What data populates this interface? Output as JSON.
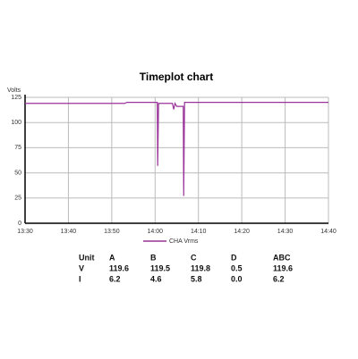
{
  "chart_data": {
    "type": "line",
    "title": "Timeplot chart",
    "y_label": "Volts",
    "x": [
      810,
      833,
      833.5,
      840.5,
      840.6,
      840.8,
      844,
      844.3,
      844.6,
      845,
      846.5,
      846.6,
      846.8,
      880
    ],
    "series": [
      {
        "name": "CHA Vrms",
        "color": "#993399",
        "values": [
          119,
          119,
          120,
          120,
          57,
          119,
          119,
          113,
          119,
          116,
          116,
          27,
          120,
          120
        ]
      }
    ],
    "xlim": [
      810,
      880
    ],
    "xticks": [
      {
        "value": 810,
        "label": "13:30"
      },
      {
        "value": 820,
        "label": "13:40"
      },
      {
        "value": 830,
        "label": "13:50"
      },
      {
        "value": 840,
        "label": "14:00"
      },
      {
        "value": 850,
        "label": "14:10"
      },
      {
        "value": 860,
        "label": "14:20"
      },
      {
        "value": 870,
        "label": "14:30"
      },
      {
        "value": 880,
        "label": "14:40"
      }
    ],
    "ylim": [
      0,
      125
    ],
    "yticks": [
      0,
      25,
      50,
      75,
      100,
      125
    ],
    "grid": true
  },
  "table": {
    "header": [
      "Unit",
      "A",
      "B",
      "C",
      "D",
      "ABC"
    ],
    "rows": [
      [
        "V",
        "119.6",
        "119.5",
        "119.8",
        "0.5",
        "119.6"
      ],
      [
        "I",
        "6.2",
        "4.6",
        "5.8",
        "0.0",
        "6.2"
      ]
    ]
  }
}
